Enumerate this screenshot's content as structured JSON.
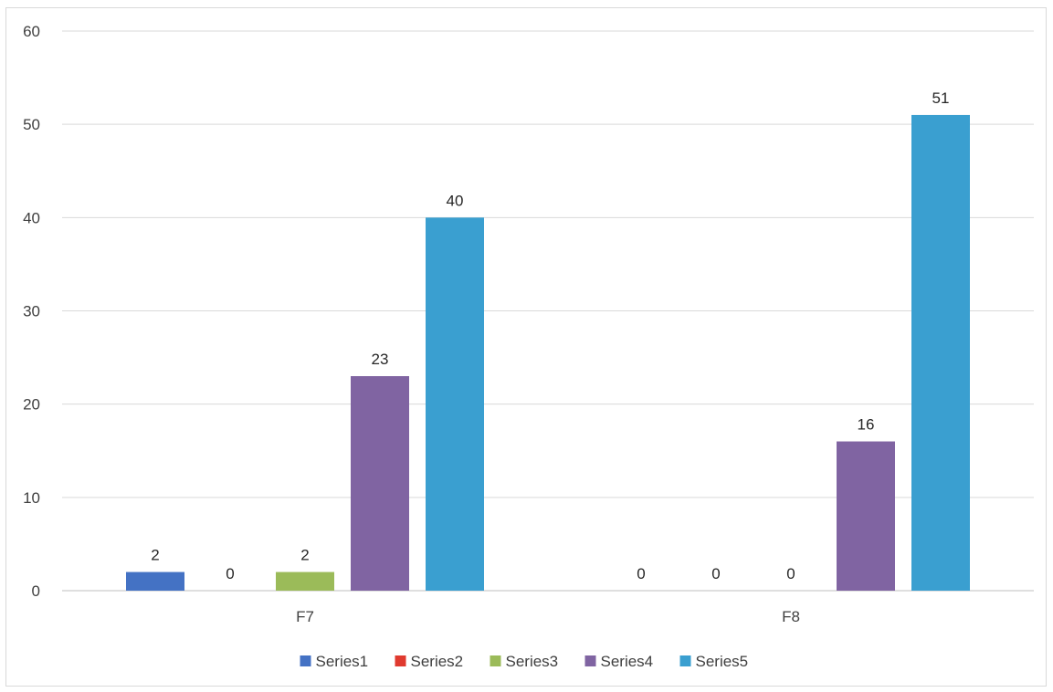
{
  "chart_data": {
    "type": "bar",
    "categories": [
      "F7",
      "F8"
    ],
    "series": [
      {
        "name": "Series1",
        "values": [
          2,
          0
        ],
        "color": "#4472c4"
      },
      {
        "name": "Series2",
        "values": [
          0,
          0
        ],
        "color": "#e03a2f"
      },
      {
        "name": "Series3",
        "values": [
          2,
          0
        ],
        "color": "#9bbb59"
      },
      {
        "name": "Series4",
        "values": [
          23,
          16
        ],
        "color": "#8064a2"
      },
      {
        "name": "Series5",
        "values": [
          40,
          51
        ],
        "color": "#3a9fd0"
      }
    ],
    "title": "",
    "xlabel": "",
    "ylabel": "",
    "ylim": [
      0,
      60
    ],
    "yticks": [
      0,
      10,
      20,
      30,
      40,
      50,
      60
    ],
    "grid": true,
    "data_labels": true,
    "legend_position": "bottom"
  }
}
